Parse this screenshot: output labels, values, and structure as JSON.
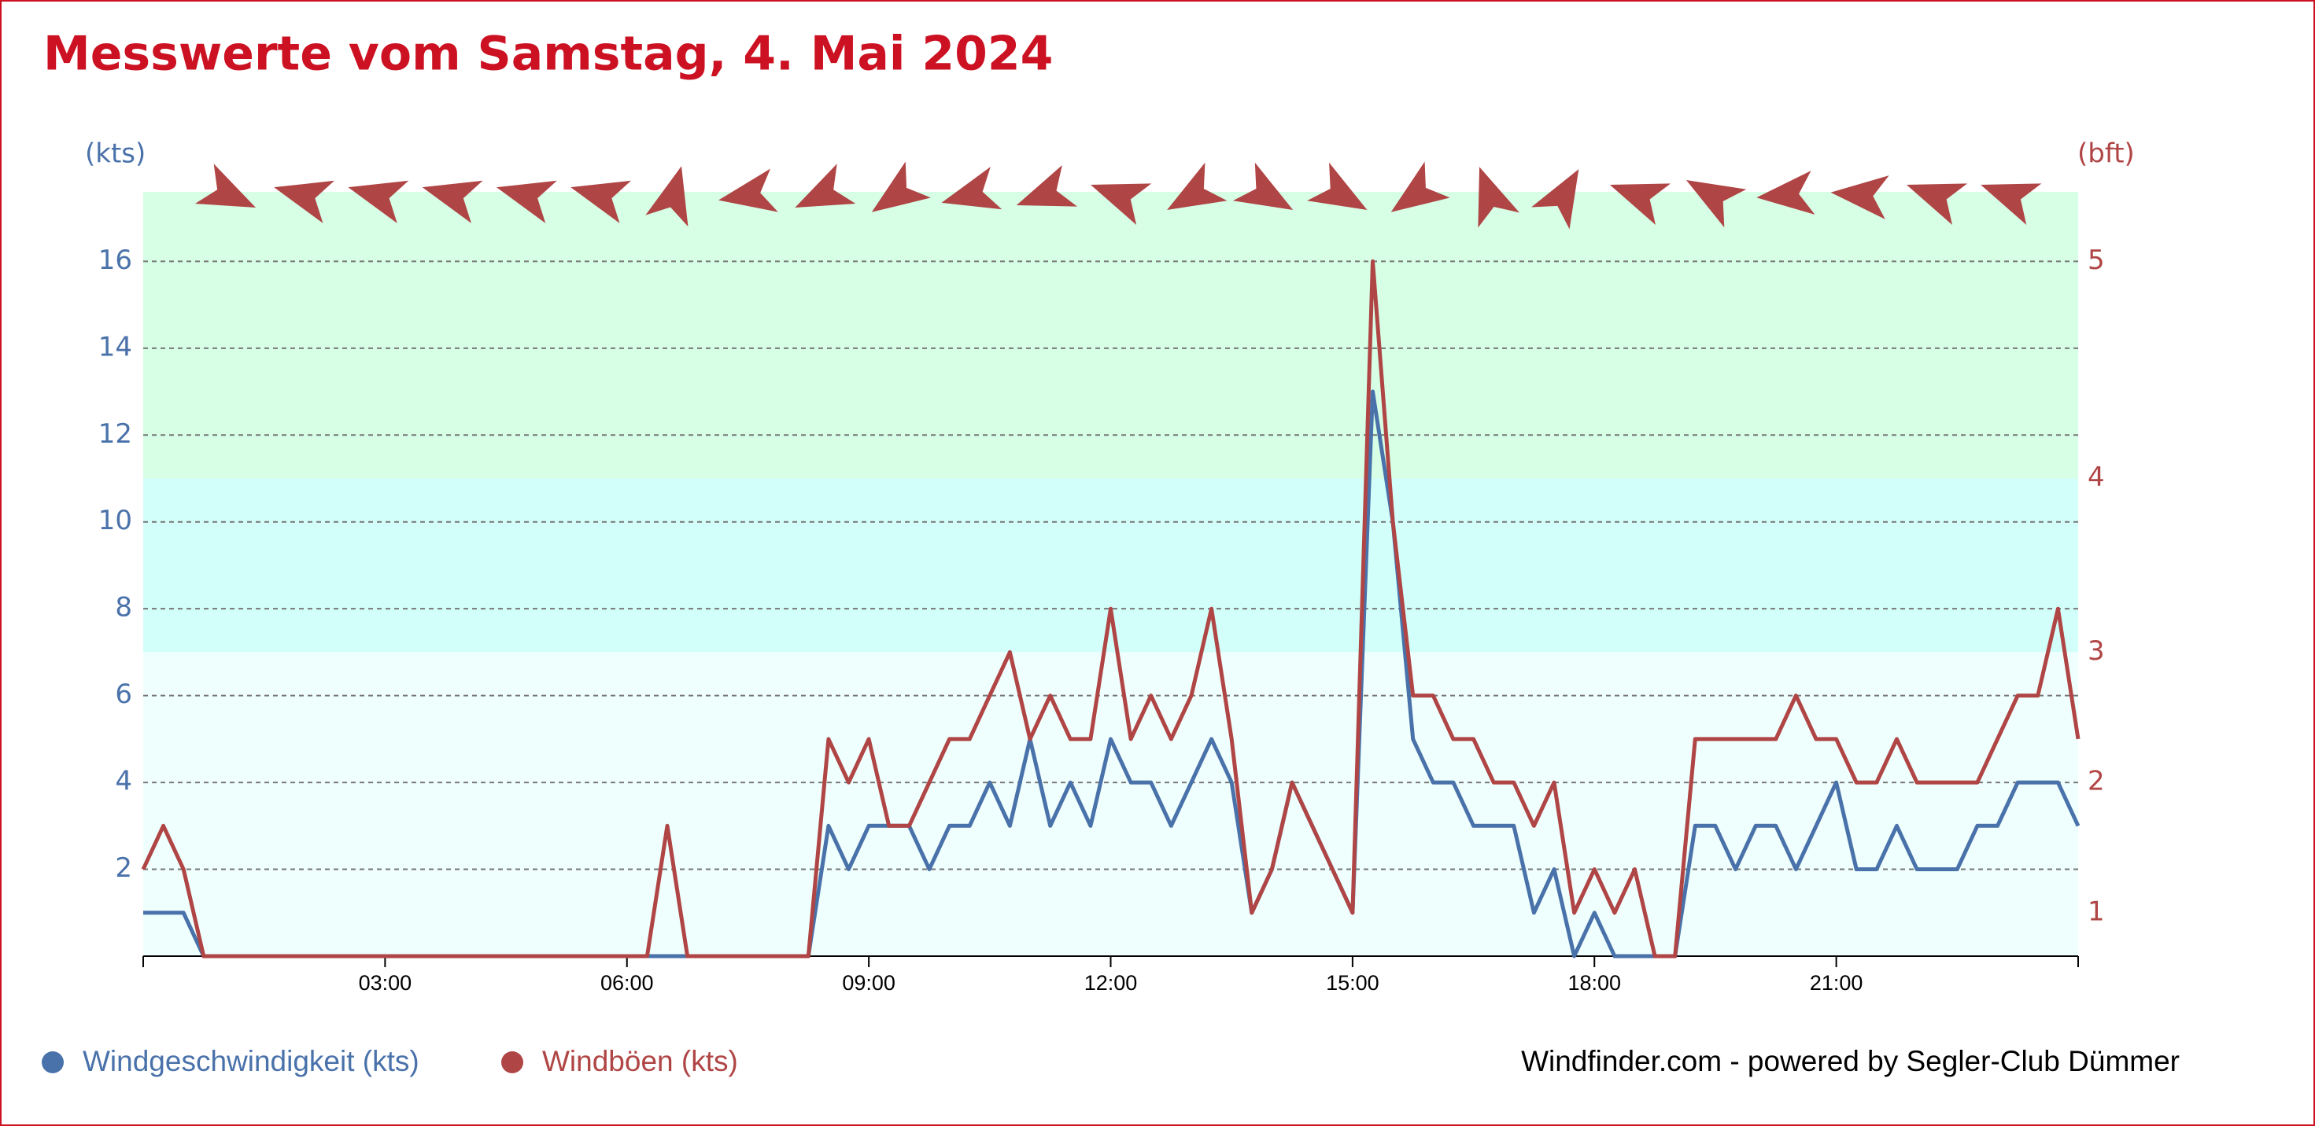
{
  "chart_data": {
    "type": "line",
    "title": "Messwerte vom Samstag, 4. Mai 2024",
    "y_unit": "(kts)",
    "y2_unit": "(bft)",
    "credit": "Windfinder.com - powered by Segler-Club Dümmer",
    "x": [
      0,
      0.25,
      0.5,
      0.75,
      1,
      1.25,
      1.5,
      1.75,
      2,
      2.25,
      2.5,
      2.75,
      3,
      3.25,
      3.5,
      3.75,
      4,
      4.25,
      4.5,
      4.75,
      5,
      5.25,
      5.5,
      5.75,
      6,
      6.25,
      6.5,
      6.75,
      7,
      7.25,
      7.5,
      7.75,
      8,
      8.25,
      8.5,
      8.75,
      9,
      9.25,
      9.5,
      9.75,
      10,
      10.25,
      10.5,
      10.75,
      11,
      11.25,
      11.5,
      11.75,
      12,
      12.25,
      12.5,
      12.75,
      13,
      13.25,
      13.5,
      13.75,
      14,
      14.25,
      14.5,
      14.75,
      15,
      15.25,
      15.5,
      15.75,
      16,
      16.25,
      16.5,
      16.75,
      17,
      17.25,
      17.5,
      17.75,
      18,
      18.25,
      18.5,
      18.75,
      19,
      19.25,
      19.5,
      19.75,
      20,
      20.25,
      20.5,
      20.75,
      21,
      21.25,
      21.5,
      21.75,
      22,
      22.25,
      22.5,
      22.75,
      23,
      23.25,
      23.5,
      23.75,
      24
    ],
    "series": [
      {
        "name": "Windgeschwindigkeit (kts)",
        "color": "#4a72aa",
        "values": [
          1,
          1,
          1,
          0,
          0,
          0,
          0,
          0,
          0,
          0,
          0,
          0,
          0,
          0,
          0,
          0,
          0,
          0,
          0,
          0,
          0,
          0,
          0,
          0,
          0,
          0,
          0,
          0,
          0,
          0,
          0,
          0,
          0,
          0,
          3,
          2,
          3,
          3,
          3,
          2,
          3,
          3,
          4,
          3,
          5,
          3,
          4,
          3,
          5,
          4,
          4,
          3,
          4,
          5,
          4,
          1,
          2,
          4,
          3,
          2,
          1,
          13,
          10,
          5,
          4,
          4,
          3,
          3,
          3,
          1,
          2,
          0,
          1,
          0,
          0,
          0,
          0,
          3,
          3,
          2,
          3,
          3,
          2,
          3,
          4,
          2,
          2,
          3,
          2,
          2,
          2,
          3,
          3,
          4,
          4,
          4,
          3
        ]
      },
      {
        "name": "Windböen (kts)",
        "color": "#b04545",
        "values": [
          2,
          3,
          2,
          0,
          0,
          0,
          0,
          0,
          0,
          0,
          0,
          0,
          0,
          0,
          0,
          0,
          0,
          0,
          0,
          0,
          0,
          0,
          0,
          0,
          0,
          0,
          3,
          0,
          0,
          0,
          0,
          0,
          0,
          0,
          5,
          4,
          5,
          3,
          3,
          4,
          5,
          5,
          6,
          7,
          5,
          6,
          5,
          5,
          8,
          5,
          6,
          5,
          6,
          8,
          5,
          1,
          2,
          4,
          3,
          2,
          1,
          16,
          10,
          6,
          6,
          5,
          5,
          4,
          4,
          3,
          4,
          1,
          2,
          1,
          2,
          0,
          0,
          5,
          5,
          5,
          5,
          5,
          6,
          5,
          5,
          4,
          4,
          5,
          4,
          4,
          4,
          4,
          5,
          6,
          6,
          8,
          5
        ]
      }
    ],
    "xlim": [
      0,
      24
    ],
    "xticks": [
      {
        "value": 3,
        "label": "03:00"
      },
      {
        "value": 6,
        "label": "06:00"
      },
      {
        "value": 9,
        "label": "09:00"
      },
      {
        "value": 12,
        "label": "12:00"
      },
      {
        "value": 15,
        "label": "15:00"
      },
      {
        "value": 18,
        "label": "18:00"
      },
      {
        "value": 21,
        "label": "21:00"
      }
    ],
    "ylim": [
      0,
      17.6
    ],
    "yticks": [
      2,
      4,
      6,
      8,
      10,
      12,
      14,
      16
    ],
    "y2ticks": [
      1,
      {
        "value": 4,
        "label": "2"
      },
      {
        "value": 7,
        "label": "3"
      },
      {
        "value": 11,
        "label": "4"
      },
      {
        "value": 16,
        "label": "5"
      }
    ],
    "bands": [
      {
        "from": 0,
        "to": 7,
        "color": "#effffd"
      },
      {
        "from": 7,
        "to": 11,
        "color": "#d2fffa"
      },
      {
        "from": 11,
        "to": 17.6,
        "color": "#d6ffe6"
      }
    ],
    "grid": true,
    "wind_direction": {
      "color": "#b04545",
      "x": [
        1.06,
        1.98,
        2.9,
        3.82,
        4.74,
        5.66,
        6.58,
        7.5,
        8.42,
        9.34,
        10.26,
        11.18,
        12.1,
        13.02,
        13.94,
        14.86,
        15.78,
        16.7,
        17.62,
        18.54,
        19.46,
        20.38,
        21.3,
        22.22,
        23.14
      ],
      "degrees": [
        25,
        195,
        195,
        195,
        195,
        195,
        285,
        170,
        155,
        145,
        165,
        160,
        200,
        150,
        30,
        30,
        145,
        250,
        300,
        200,
        210,
        175,
        185,
        200,
        200
      ]
    }
  }
}
